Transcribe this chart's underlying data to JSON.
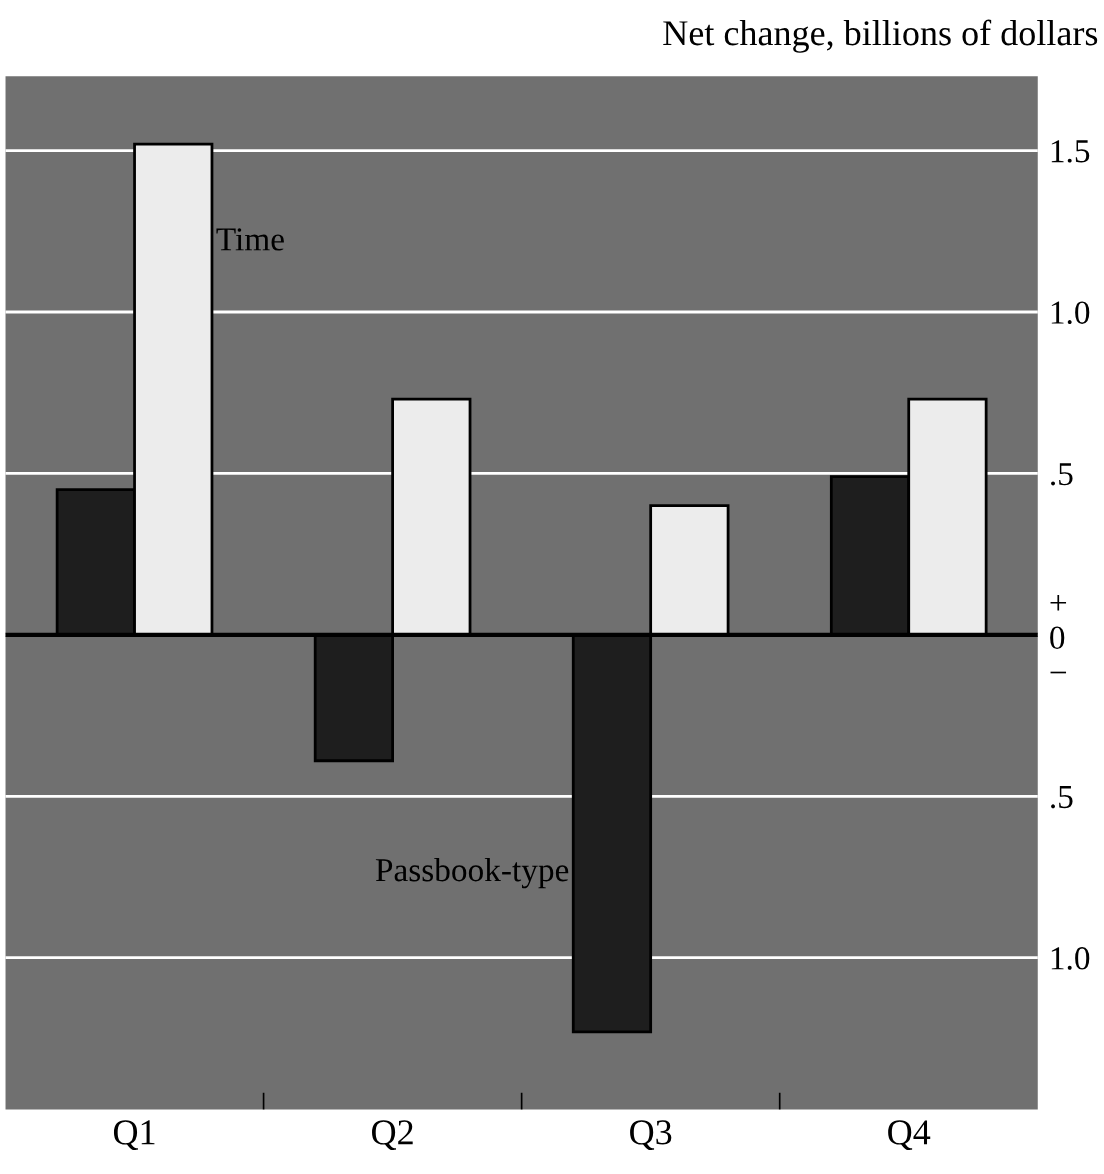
{
  "chart_data": {
    "type": "bar",
    "ylabel": "Net change, billions of dollars",
    "categories": [
      "Q1",
      "Q2",
      "Q3",
      "Q4"
    ],
    "series": [
      {
        "name": "Passbook-type",
        "color": "#1e1e1e",
        "values": [
          0.45,
          -0.39,
          -1.23,
          0.49
        ]
      },
      {
        "name": "Time",
        "color": "#ececec",
        "values": [
          1.52,
          0.73,
          0.4,
          0.73
        ]
      }
    ],
    "ylim": [
      -1.47,
      1.73
    ],
    "yticks": [
      {
        "value": -1.0,
        "label": "1.0"
      },
      {
        "value": -0.5,
        "label": ".5"
      },
      {
        "value": 0,
        "label": "+\n0\n−"
      },
      {
        "value": 0.5,
        "label": ".5"
      },
      {
        "value": 1.0,
        "label": "1.0"
      },
      {
        "value": 1.5,
        "label": "1.5"
      }
    ],
    "grid": "y",
    "legend": false
  }
}
